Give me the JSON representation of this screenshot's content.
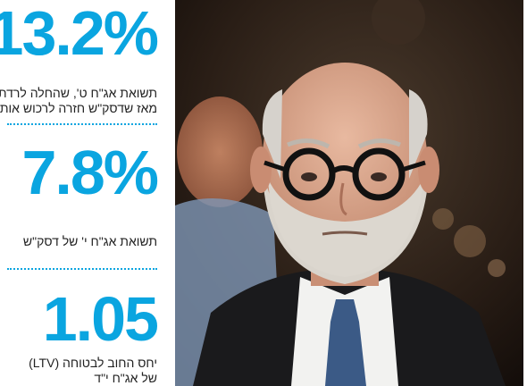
{
  "stats": [
    {
      "value": "13.2%",
      "caption_lines": [
        "תשואת אג\"ח ט', שהחלה לרדת",
        "מאז שדסק\"ש חזרה לרכוש אותן"
      ]
    },
    {
      "value": "7.8%",
      "caption_lines": [
        "תשואת אג\"ח י' של דסק\"ש"
      ]
    },
    {
      "value": "1.05",
      "caption_lines": [
        "יחס החוב לבטוחה (LTV)",
        "של אג\"ח י\"ד"
      ]
    }
  ],
  "colors": {
    "accent": "#0aa5e0",
    "text": "#222222",
    "photo_bg": "#1c1410"
  }
}
